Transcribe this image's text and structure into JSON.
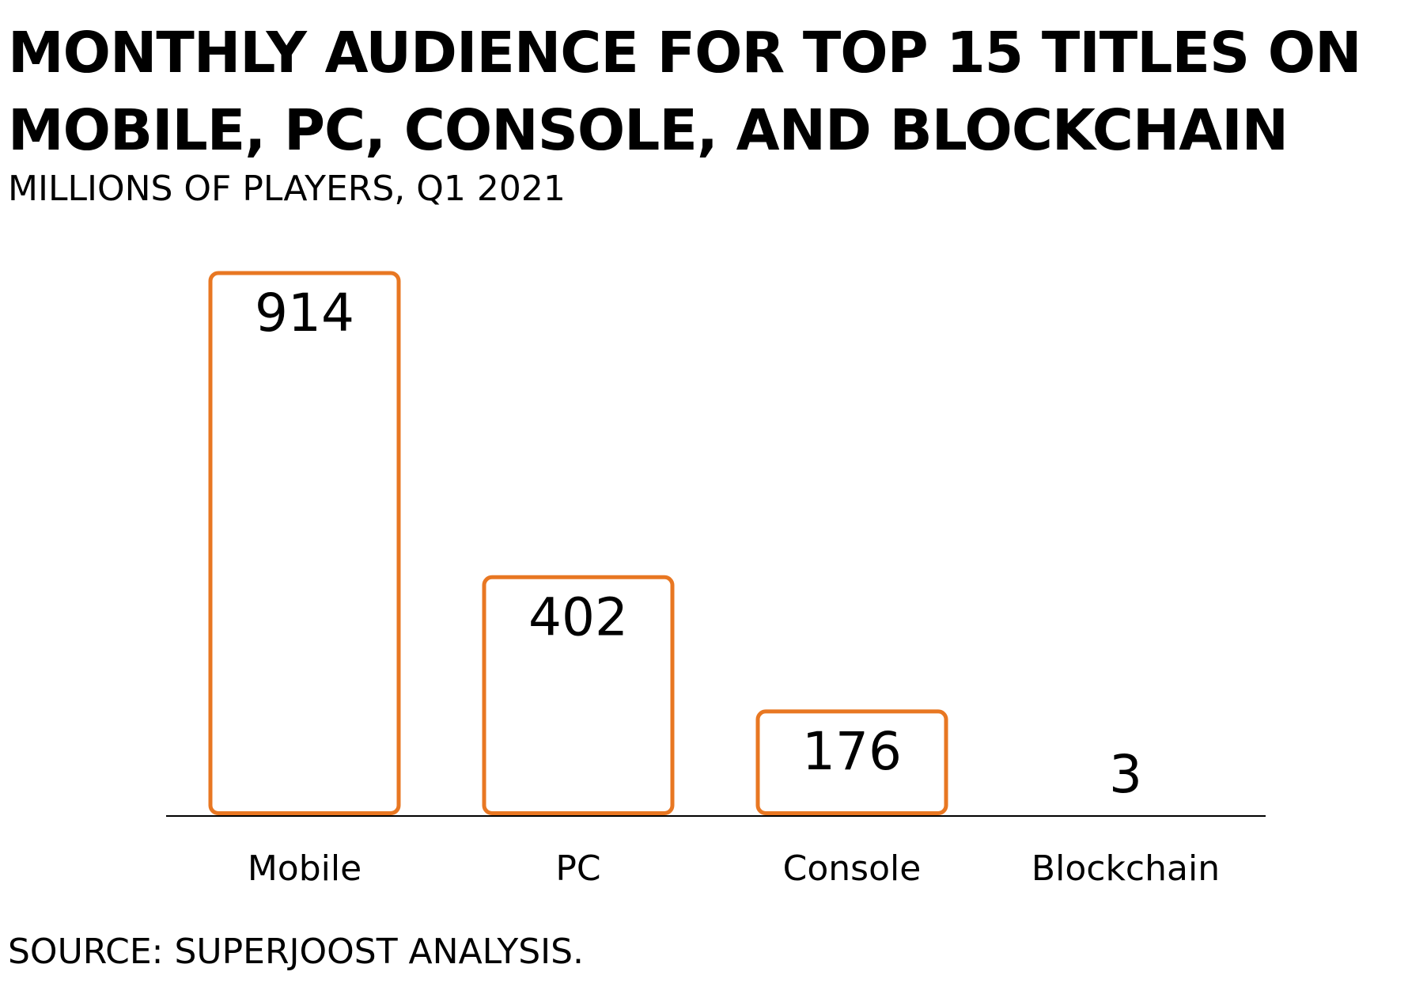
{
  "title": "MONTHLY AUDIENCE FOR TOP 15 TITLES ON MOBILE, PC, CONSOLE, AND BLOCKCHAIN",
  "subtitle": "MILLIONS OF PLAYERS, Q1 2021",
  "source": "SOURCE: SUPERJOOST ANALYSIS.",
  "colors": {
    "bar_outline": "#E87722",
    "bar_fill": "#FFFFFF",
    "axis": "#000000",
    "text": "#000000"
  },
  "chart_data": {
    "type": "bar",
    "title": "MONTHLY AUDIENCE FOR TOP 15 TITLES ON MOBILE, PC, CONSOLE, AND BLOCKCHAIN",
    "subtitle": "MILLIONS OF PLAYERS, Q1 2021",
    "categories": [
      "Mobile",
      "PC",
      "Console",
      "Blockchain"
    ],
    "values": [
      914,
      402,
      176,
      3
    ],
    "value_labels": [
      "914",
      "402",
      "176",
      "3"
    ],
    "xlabel": "",
    "ylabel": "",
    "ylim": [
      0,
      914
    ],
    "grid": false,
    "legend": "none",
    "bar_style": "outlined"
  }
}
